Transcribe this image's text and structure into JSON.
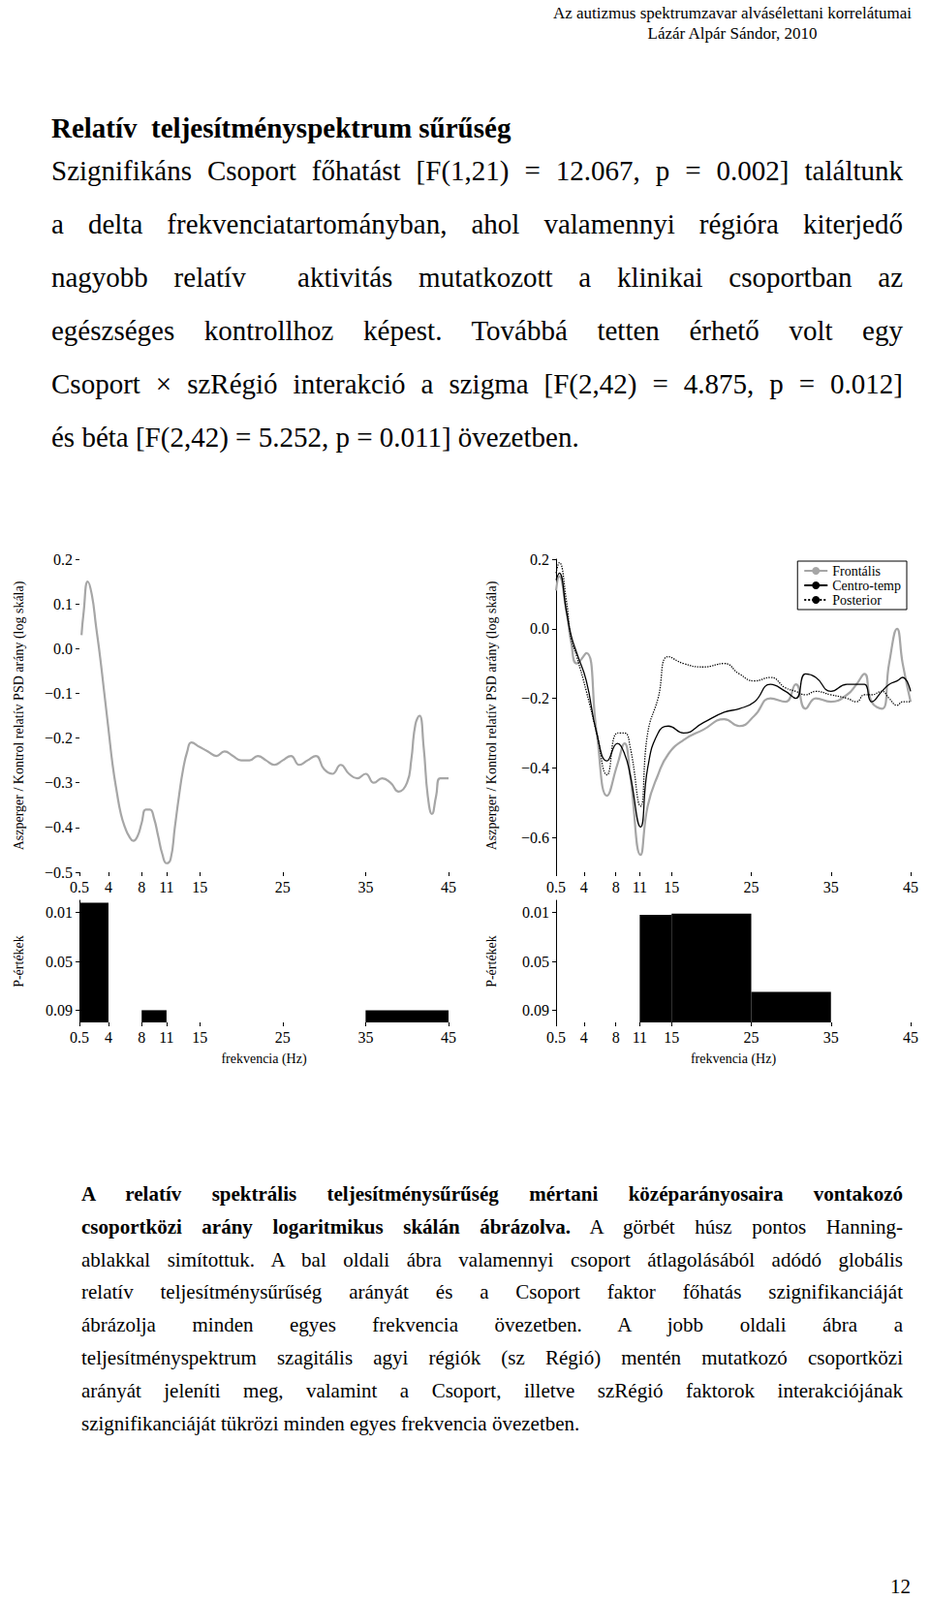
{
  "header": {
    "title": "Az autizmus spektrumzavar alvásélettani korrelátumai",
    "author": "Lázár Alpár Sándor, 2010"
  },
  "section_title": "Relatív  teljesítményspektrum sűrűség",
  "body_lines": [
    "Szignifikáns Csoport főhatást [F(1,21) = 12.067, p = 0.002] találtunk",
    "a delta frekvenciatartományban, ahol valamennyi régióra kiterjedő",
    "nagyobb relatív  aktivitás mutatkozott a klinikai csoportban az",
    "egészséges kontrollhoz képest. Továbbá tetten érhető volt egy",
    "Csoport × szRégió interakció a szigma [F(2,42) = 4.875, p = 0.012]",
    "és béta [F(2,42) = 5.252, p = 0.011] övezetben."
  ],
  "chart_data": [
    {
      "type": "line",
      "y_label": "Aszperger / Kontrol relatív PSD arány (log skála)",
      "grid": false,
      "xlim": [
        0.5,
        45
      ],
      "xticks": [
        0.5,
        4,
        8,
        11,
        15,
        25,
        35,
        45
      ],
      "ylim": [
        -0.5,
        0.2
      ],
      "yticks": [
        0.2,
        0.1,
        {
          "value": 0,
          "label": "0.0"
        },
        {
          "value": -0.1,
          "label": "−0.1"
        },
        {
          "value": -0.2,
          "label": "−0.2"
        },
        {
          "value": -0.3,
          "label": "−0.3"
        },
        {
          "value": -0.4,
          "label": "−0.4"
        },
        {
          "value": -0.5,
          "label": "−0.5"
        }
      ],
      "x": [
        0.75,
        1,
        1.5,
        2,
        2.5,
        3,
        3.5,
        4,
        4.5,
        5,
        5.5,
        6,
        6.5,
        7,
        7.5,
        8,
        8.5,
        9,
        9.5,
        10,
        10.5,
        11,
        11.5,
        12,
        12.5,
        13,
        13.5,
        14,
        15,
        16,
        17,
        18,
        19,
        20,
        21,
        22,
        23,
        24,
        25,
        26,
        27,
        28,
        29,
        30,
        31,
        32,
        33,
        34,
        35,
        36,
        37,
        38,
        39,
        40,
        40.5,
        41,
        41.5,
        42,
        42.5,
        43,
        43.5,
        44,
        45
      ],
      "series": [
        {
          "color": "#a6a6a6",
          "line_style": "solid",
          "values": [
            0.03,
            0.08,
            0.15,
            0.12,
            0.05,
            -0.02,
            -0.1,
            -0.18,
            -0.26,
            -0.32,
            -0.37,
            -0.4,
            -0.42,
            -0.43,
            -0.42,
            -0.39,
            -0.36,
            -0.36,
            -0.38,
            -0.42,
            -0.46,
            -0.48,
            -0.47,
            -0.4,
            -0.33,
            -0.27,
            -0.23,
            -0.21,
            -0.22,
            -0.23,
            -0.24,
            -0.23,
            -0.24,
            -0.25,
            -0.25,
            -0.24,
            -0.25,
            -0.26,
            -0.25,
            -0.24,
            -0.26,
            -0.25,
            -0.24,
            -0.27,
            -0.28,
            -0.26,
            -0.28,
            -0.29,
            -0.28,
            -0.3,
            -0.29,
            -0.3,
            -0.32,
            -0.3,
            -0.25,
            -0.17,
            -0.15,
            -0.22,
            -0.33,
            -0.37,
            -0.33,
            -0.29,
            -0.29
          ]
        }
      ]
    },
    {
      "type": "bar",
      "y_label": "P-értékek",
      "x_label": "frekvencia (Hz)",
      "grid": false,
      "color": "#000000",
      "xlim": [
        0.5,
        45
      ],
      "xticks": [
        0.5,
        4,
        8,
        11,
        15,
        25,
        35,
        45
      ],
      "ylim": [
        0.1,
        0
      ],
      "yticks": [
        0.01,
        0.05,
        0.09
      ],
      "bands": [
        [
          0.5,
          4
        ],
        [
          8,
          11
        ],
        [
          35,
          45
        ]
      ],
      "values": [
        0.002,
        0.09,
        0.09
      ]
    },
    {
      "type": "line",
      "y_label": "Aszperger / Kontrol relatív PSD arány (log skála)",
      "grid": false,
      "legend": "top-right",
      "xlim": [
        0.5,
        45
      ],
      "xticks": [
        0.5,
        4,
        8,
        11,
        15,
        25,
        35,
        45
      ],
      "ylim": [
        -0.7,
        0.2
      ],
      "yticks": [
        0.2,
        {
          "value": 0,
          "label": "0.0"
        },
        {
          "value": -0.2,
          "label": "−0.2"
        },
        {
          "value": -0.4,
          "label": "−0.4"
        },
        {
          "value": -0.6,
          "label": "−0.6"
        }
      ],
      "x": [
        0.5,
        0.9,
        1.8,
        2.4,
        3.1,
        4.3,
        5.6,
        6.9,
        8.2,
        9.1,
        9.8,
        11.1,
        12.0,
        13.3,
        14.6,
        16.5,
        19.0,
        21.6,
        23.5,
        25.4,
        27.4,
        29.3,
        30.6,
        31.8,
        33.1,
        35.0,
        37.0,
        38.2,
        39.2,
        40.1,
        41.4,
        42.3,
        43.3,
        44.0,
        45.0
      ],
      "series": [
        {
          "name": "Frontális",
          "color": "#a6a6a6",
          "line_style": "solid",
          "values": [
            0.11,
            0.15,
            0.05,
            -0.04,
            -0.1,
            -0.07,
            -0.3,
            -0.48,
            -0.39,
            -0.33,
            -0.42,
            -0.65,
            -0.51,
            -0.42,
            -0.36,
            -0.32,
            -0.29,
            -0.26,
            -0.28,
            -0.25,
            -0.2,
            -0.21,
            -0.16,
            -0.23,
            -0.2,
            -0.21,
            -0.19,
            -0.16,
            -0.13,
            -0.21,
            -0.23,
            -0.1,
            0.0,
            -0.1,
            -0.21
          ]
        },
        {
          "name": "Centro-temp",
          "color": "#000000",
          "line_style": "solid",
          "values": [
            0.14,
            0.16,
            0.05,
            -0.02,
            -0.07,
            -0.15,
            -0.3,
            -0.38,
            -0.33,
            -0.36,
            -0.42,
            -0.57,
            -0.4,
            -0.3,
            -0.28,
            -0.3,
            -0.27,
            -0.24,
            -0.23,
            -0.21,
            -0.16,
            -0.18,
            -0.2,
            -0.13,
            -0.14,
            -0.18,
            -0.16,
            -0.16,
            -0.16,
            -0.21,
            -0.18,
            -0.16,
            -0.15,
            -0.14,
            -0.18
          ]
        },
        {
          "name": "Posterior",
          "color": "#000000",
          "line_style": "dotted",
          "values": [
            0.16,
            0.19,
            0.08,
            -0.03,
            -0.08,
            -0.18,
            -0.3,
            -0.42,
            -0.3,
            -0.3,
            -0.34,
            -0.51,
            -0.3,
            -0.2,
            -0.08,
            -0.1,
            -0.11,
            -0.1,
            -0.13,
            -0.15,
            -0.14,
            -0.17,
            -0.18,
            -0.19,
            -0.18,
            -0.19,
            -0.2,
            -0.21,
            -0.19,
            -0.19,
            -0.18,
            -0.2,
            -0.22,
            -0.21,
            -0.21
          ]
        }
      ]
    },
    {
      "type": "bar",
      "y_label": "P-értékek",
      "x_label": "frekvencia (Hz)",
      "grid": false,
      "color": "#000000",
      "xlim": [
        0.5,
        45
      ],
      "xticks": [
        0.5,
        4,
        8,
        11,
        15,
        25,
        35,
        45
      ],
      "ylim": [
        0.1,
        0
      ],
      "yticks": [
        0.01,
        0.05,
        0.09
      ],
      "bands": [
        [
          11,
          15
        ],
        [
          15,
          25
        ],
        [
          25,
          35
        ]
      ],
      "values": [
        0.012,
        0.011,
        0.075
      ]
    }
  ],
  "caption_lines": [
    {
      "bold": "A relatív spektrális teljesítménysűrűség mértani középarányosaira vontakozó"
    },
    {
      "bold": "csoportközi arány logaritmikus skálán ábrázolva.",
      "text": " A görbét húsz pontos Hanning-"
    },
    {
      "text": "ablakkal simítottuk. A bal oldali ábra valamennyi csoport átlagolásából adódó globális"
    },
    {
      "text": "relatív teljesítménysűrűség arányát és a Csoport faktor főhatás szignifikanciáját"
    },
    {
      "text": "ábrázolja minden egyes frekvencia övezetben. A jobb oldali ábra a"
    },
    {
      "text": "teljesítményspektrum szagitális agyi régiók (sz Régió) mentén mutatkozó csoportközi"
    },
    {
      "text": "arányát jeleníti meg, valamint a Csoport, illetve szRégió faktorok interakciójának"
    },
    {
      "text": "szignifikanciáját tükrözi minden egyes frekvencia övezetben."
    }
  ],
  "page_number": "12"
}
